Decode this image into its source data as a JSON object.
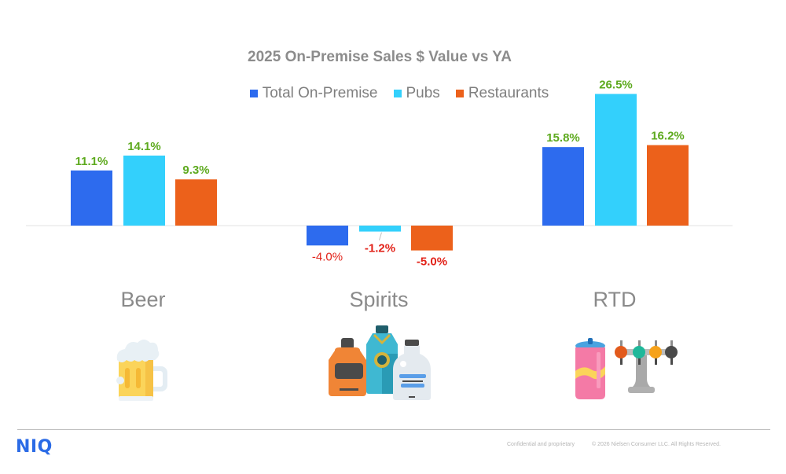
{
  "chart_data": {
    "type": "bar",
    "title": "2025 On-Premise Sales $ Value vs YA",
    "xlabel": "",
    "ylabel": "",
    "categories": [
      "Beer",
      "Spirits",
      "RTD"
    ],
    "series": [
      {
        "name": "Total On-Premise",
        "color": "#2d6bee",
        "values": [
          11.1,
          -4.0,
          15.8
        ],
        "labels": [
          "11.1%",
          "-4.0%",
          "15.8%"
        ]
      },
      {
        "name": "Pubs",
        "color": "#33d0fc",
        "values": [
          14.1,
          -1.2,
          26.5
        ],
        "labels": [
          "14.1%",
          "-1.2%",
          "26.5%"
        ]
      },
      {
        "name": "Restaurants",
        "color": "#ec611b",
        "values": [
          9.3,
          -5.0,
          16.2
        ],
        "labels": [
          "9.3%",
          "-5.0%",
          "16.2%"
        ]
      }
    ],
    "ylim": [
      -8,
      30
    ],
    "grid": false,
    "legend_position": "top-center",
    "label_colors": {
      "positive": "#5eaa1f",
      "negative": "#e2231a"
    }
  },
  "icons": {
    "beer": "beer-mug-icon",
    "spirits": "liquor-bottles-icon",
    "rtd": "can-and-beer-tap-icon"
  },
  "footer": {
    "logo": "NIQ",
    "confidential": "Confidential and proprietary",
    "copyright": "© 2026 Nielsen Consumer LLC. All Rights Reserved."
  },
  "colors": {
    "brand": "#2b6be6"
  }
}
